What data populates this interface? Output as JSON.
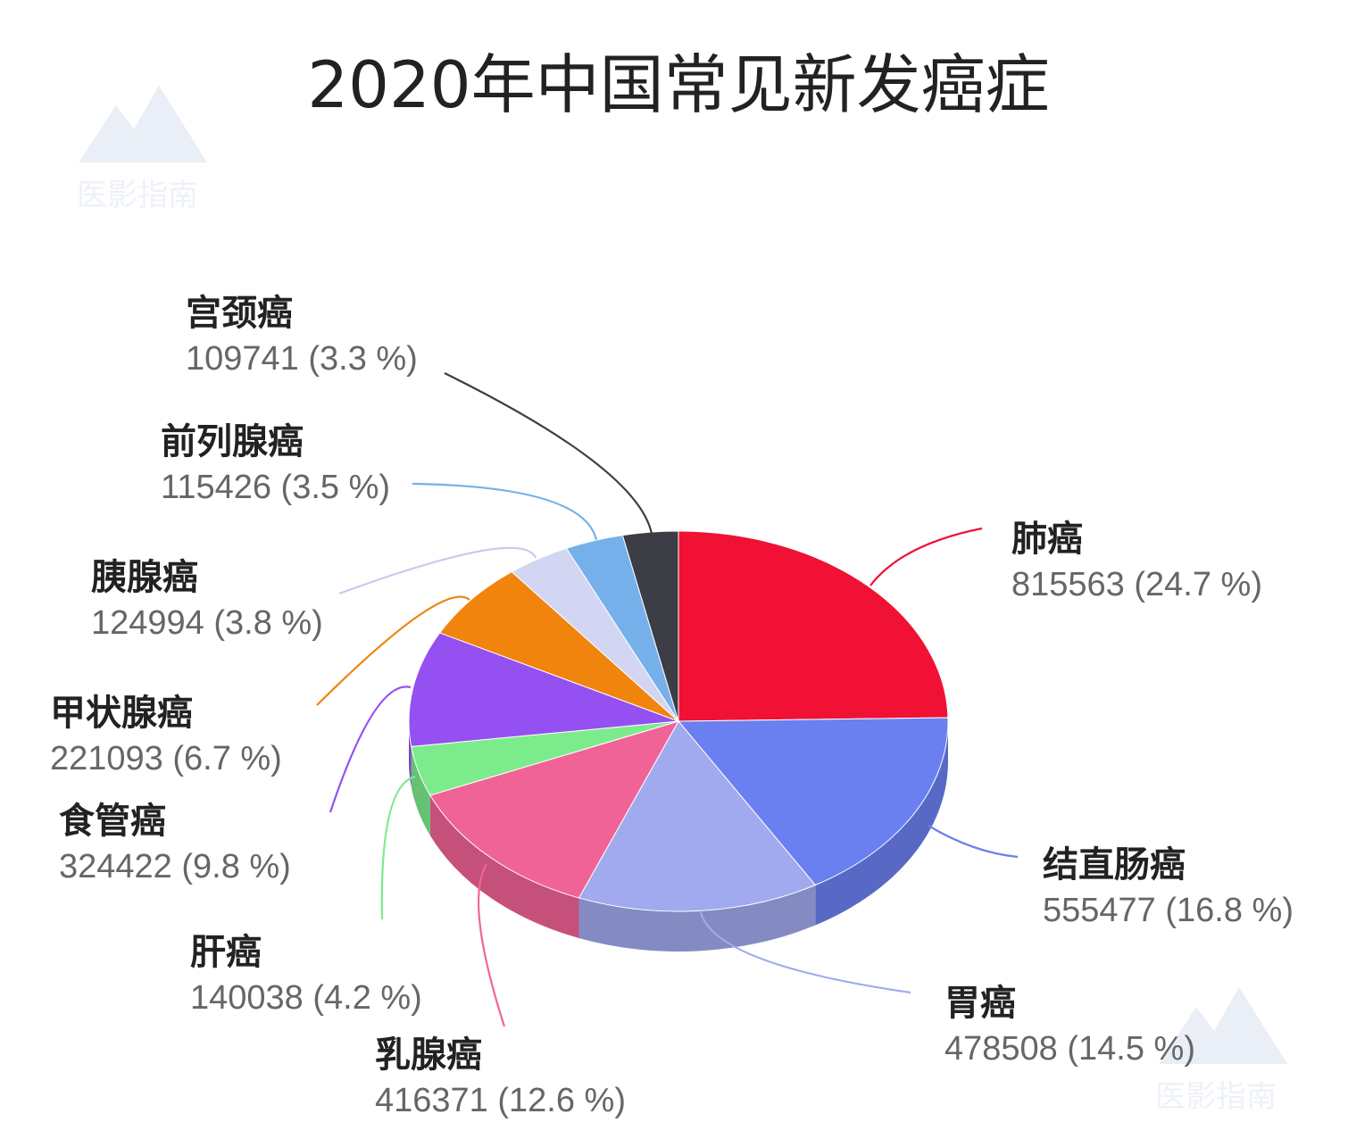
{
  "chart_data": {
    "type": "pie",
    "title": "2020年中国常见新发癌症",
    "watermark": "医影指南",
    "slices": [
      {
        "name": "肺癌",
        "value": 815563,
        "percent_label": "(24.7 %)",
        "color": "#f01134"
      },
      {
        "name": "结直肠癌",
        "value": 555477,
        "percent_label": "(16.8 %)",
        "color": "#6a80f0"
      },
      {
        "name": "胃癌",
        "value": 478508,
        "percent_label": "(14.5 %)",
        "color": "#a1aaee"
      },
      {
        "name": "乳腺癌",
        "value": 416371,
        "percent_label": "(12.6 %)",
        "color": "#f06396"
      },
      {
        "name": "肝癌",
        "value": 140038,
        "percent_label": "(4.2 %)",
        "color": "#7ceb8c"
      },
      {
        "name": "食管癌",
        "value": 324422,
        "percent_label": "(9.8 %)",
        "color": "#9550f2"
      },
      {
        "name": "甲状腺癌",
        "value": 221093,
        "percent_label": "(6.7 %)",
        "color": "#f0840d"
      },
      {
        "name": "胰腺癌",
        "value": 124994,
        "percent_label": "(3.8 %)",
        "color": "#d3d6f2"
      },
      {
        "name": "前列腺癌",
        "value": 115426,
        "percent_label": "(3.5 %)",
        "color": "#75b0eb"
      },
      {
        "name": "宫颈癌",
        "value": 109741,
        "percent_label": "(3.3 %)",
        "color": "#3c3d45"
      }
    ]
  }
}
